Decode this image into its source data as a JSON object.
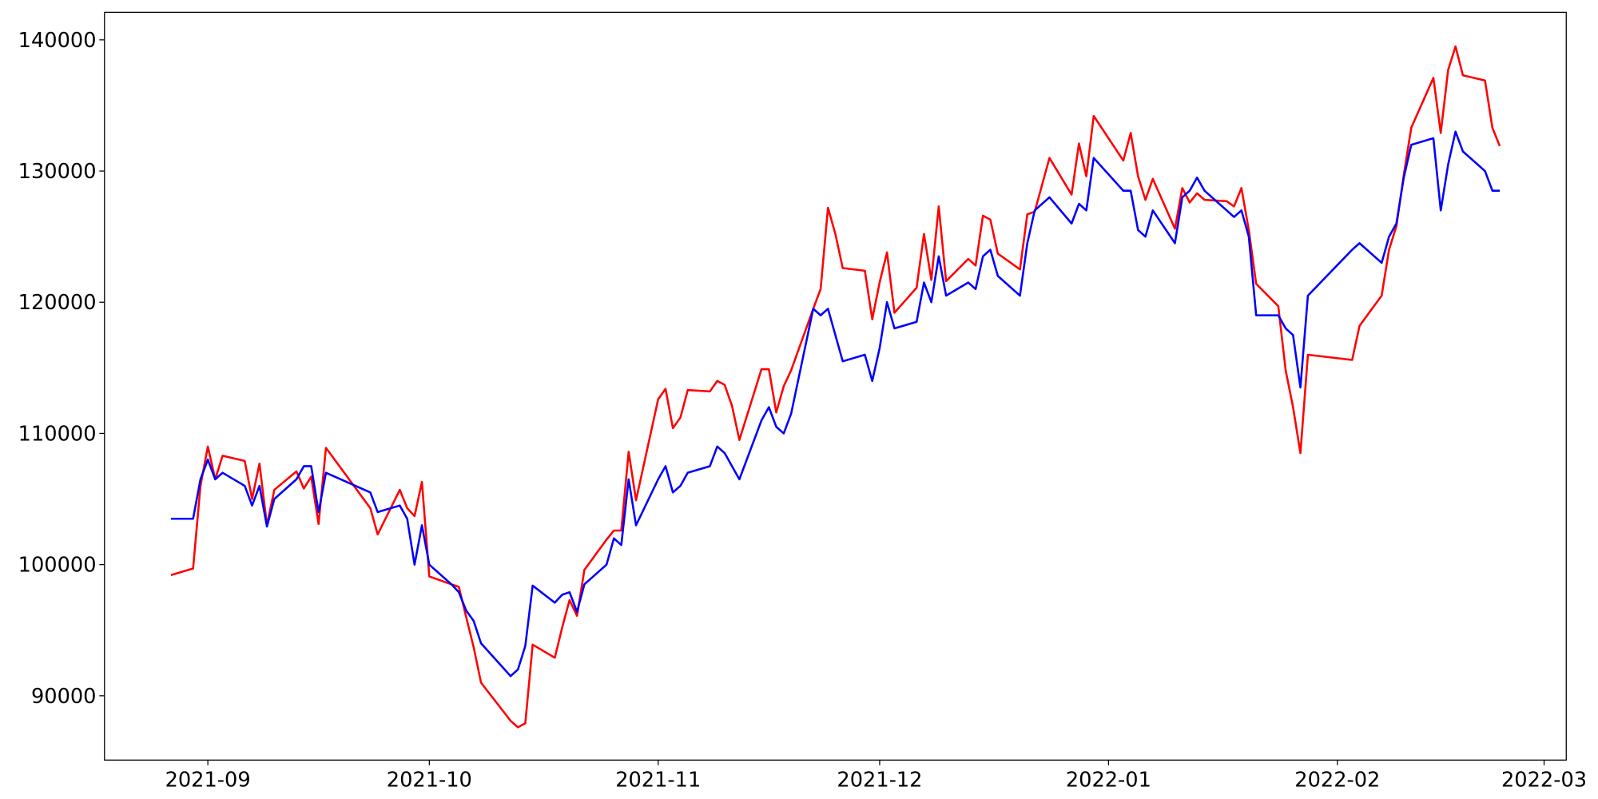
{
  "chart_data": {
    "type": "line",
    "x": [
      -5,
      -2,
      -1,
      0,
      1,
      2,
      5,
      6,
      7,
      8,
      9,
      12,
      13,
      14,
      15,
      16,
      22,
      23,
      26,
      27,
      28,
      29,
      30,
      33,
      34,
      35,
      36,
      37,
      41,
      42,
      43,
      44,
      47,
      48,
      49,
      50,
      51,
      54,
      55,
      56,
      57,
      58,
      61,
      62,
      63,
      64,
      65,
      68,
      69,
      70,
      71,
      72,
      75,
      76,
      77,
      78,
      79,
      82,
      83,
      84,
      85,
      86,
      89,
      90,
      91,
      92,
      93,
      96,
      97,
      98,
      99,
      100,
      103,
      104,
      105,
      106,
      107,
      110,
      111,
      112,
      114,
      117,
      118,
      119,
      120,
      124,
      125,
      126,
      127,
      128,
      131,
      132,
      133,
      134,
      135,
      138,
      139,
      140,
      141,
      142,
      145,
      146,
      147,
      148,
      149,
      155,
      156,
      159,
      160,
      161,
      162,
      163,
      166,
      167,
      168,
      169,
      170,
      173,
      174,
      175
    ],
    "series": [
      {
        "color": "#ff0000",
        "values": [
          99200,
          99700,
          106000,
          109000,
          106500,
          108300,
          107900,
          105000,
          107700,
          103000,
          105700,
          107100,
          105800,
          106700,
          103100,
          108900,
          104300,
          102300,
          105700,
          104300,
          103700,
          106300,
          99100,
          98500,
          98300,
          96000,
          93700,
          91000,
          88100,
          87600,
          87900,
          93900,
          92900,
          95200,
          97300,
          96100,
          99600,
          101900,
          102600,
          102600,
          108600,
          104900,
          112600,
          113400,
          110400,
          111200,
          113300,
          113200,
          114000,
          113700,
          112100,
          109500,
          114900,
          114900,
          111600,
          113600,
          114800,
          119500,
          121000,
          127200,
          125200,
          122600,
          122400,
          118700,
          121500,
          123800,
          119200,
          121100,
          125200,
          121700,
          127300,
          121600,
          123300,
          122800,
          126600,
          126300,
          123700,
          122500,
          126700,
          126900,
          131000,
          128200,
          132100,
          129600,
          134200,
          130800,
          132900,
          129600,
          127800,
          129400,
          125600,
          128700,
          127600,
          128300,
          127800,
          127700,
          127300,
          128700,
          125500,
          121400,
          119700,
          114800,
          112000,
          108500,
          116000,
          115600,
          118200,
          120500,
          124000,
          125800,
          129700,
          133300,
          137100,
          132900,
          137700,
          139500,
          137300,
          136900,
          133300,
          131900
        ]
      },
      {
        "color": "#0000ff",
        "values": [
          103500,
          103500,
          106500,
          108000,
          106500,
          107000,
          106000,
          104500,
          106000,
          102900,
          105000,
          106500,
          107500,
          107500,
          104000,
          107000,
          105500,
          104000,
          104500,
          103500,
          100000,
          103000,
          100000,
          98500,
          97900,
          96500,
          95700,
          94000,
          91500,
          92000,
          93800,
          98400,
          97100,
          97700,
          97900,
          96400,
          98500,
          100000,
          102000,
          101500,
          106500,
          103000,
          106500,
          107500,
          105500,
          106000,
          107000,
          107500,
          109000,
          108500,
          107500,
          106500,
          111000,
          112000,
          110500,
          110000,
          111500,
          119500,
          119000,
          119500,
          117500,
          115500,
          116000,
          114000,
          116500,
          120000,
          118000,
          118500,
          121500,
          120000,
          123500,
          120500,
          121500,
          121000,
          123500,
          124000,
          122000,
          120500,
          124500,
          127000,
          128000,
          126000,
          127500,
          127000,
          131000,
          128500,
          128500,
          125500,
          125000,
          127000,
          124500,
          128000,
          128500,
          129500,
          128500,
          127000,
          126500,
          127000,
          125000,
          119000,
          119000,
          118000,
          117500,
          113500,
          120500,
          124000,
          124500,
          123000,
          125000,
          126000,
          129500,
          132000,
          132500,
          127000,
          130500,
          133000,
          131500,
          130000,
          128500,
          128500
        ]
      }
    ],
    "xlim": [
      -14,
      184
    ],
    "xticks": [
      {
        "value": 0,
        "label": "2021-09"
      },
      {
        "value": 30,
        "label": "2021-10"
      },
      {
        "value": 61,
        "label": "2021-11"
      },
      {
        "value": 91,
        "label": "2021-12"
      },
      {
        "value": 122,
        "label": "2022-01"
      },
      {
        "value": 153,
        "label": "2022-02"
      },
      {
        "value": 181,
        "label": "2022-03"
      }
    ],
    "ylim": [
      85100,
      142100
    ],
    "yticks": [
      90000,
      100000,
      110000,
      120000,
      130000,
      140000
    ]
  }
}
